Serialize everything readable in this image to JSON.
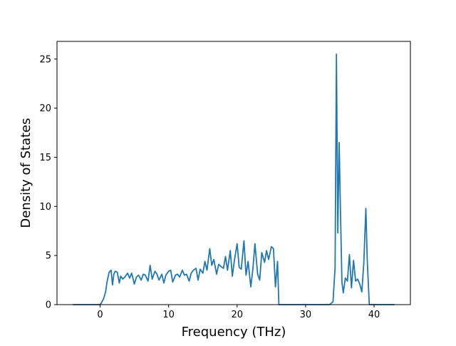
{
  "chart_data": {
    "type": "line",
    "title": "",
    "xlabel": "Frequency (THz)",
    "ylabel": "Density of States",
    "xlim": [
      -6.3,
      45.3
    ],
    "ylim": [
      0,
      26.8
    ],
    "xticks": [
      0,
      10,
      20,
      30,
      40
    ],
    "yticks": [
      0,
      5,
      10,
      15,
      20,
      25
    ],
    "grid": false,
    "legend": null,
    "series": [
      {
        "color": "#1f77b4",
        "x": [
          -4.0,
          -3.0,
          -2.0,
          -1.0,
          -0.5,
          0.0,
          0.2,
          0.5,
          0.8,
          1.0,
          1.3,
          1.6,
          1.8,
          2.0,
          2.2,
          2.5,
          2.8,
          3.0,
          3.3,
          3.6,
          4.0,
          4.3,
          4.6,
          5.0,
          5.3,
          5.6,
          6.0,
          6.3,
          6.6,
          7.0,
          7.3,
          7.6,
          8.0,
          8.3,
          8.6,
          9.0,
          9.3,
          9.6,
          10.0,
          10.3,
          10.6,
          11.0,
          11.3,
          11.6,
          12.0,
          12.3,
          12.6,
          13.0,
          13.3,
          13.6,
          14.0,
          14.3,
          14.6,
          15.0,
          15.3,
          15.6,
          16.0,
          16.3,
          16.6,
          17.0,
          17.3,
          17.6,
          18.0,
          18.3,
          18.6,
          19.0,
          19.3,
          19.6,
          20.0,
          20.3,
          20.6,
          21.0,
          21.3,
          21.6,
          22.0,
          22.3,
          22.6,
          23.0,
          23.3,
          23.6,
          24.0,
          24.3,
          24.6,
          25.0,
          25.3,
          25.6,
          25.9,
          26.1,
          26.4,
          27.0,
          28.0,
          30.0,
          32.0,
          33.5,
          34.0,
          34.3,
          34.5,
          34.7,
          34.9,
          35.1,
          35.3,
          35.5,
          35.8,
          36.1,
          36.4,
          36.7,
          37.0,
          37.3,
          37.6,
          37.9,
          38.2,
          38.5,
          38.8,
          39.0,
          39.3,
          39.6,
          40.0,
          41.0,
          43.0
        ],
        "y": [
          0,
          0,
          0,
          0,
          0,
          0,
          0.2,
          0.6,
          1.3,
          2.3,
          3.3,
          3.5,
          2.0,
          3.1,
          3.4,
          3.3,
          2.2,
          2.9,
          2.6,
          2.8,
          3.2,
          2.7,
          3.2,
          2.1,
          2.8,
          3.0,
          2.5,
          3.1,
          3.0,
          2.4,
          4.0,
          2.6,
          3.4,
          3.1,
          2.5,
          3.1,
          2.2,
          3.0,
          3.4,
          3.5,
          2.3,
          3.0,
          3.1,
          2.8,
          3.5,
          3.0,
          3.1,
          2.4,
          3.2,
          3.5,
          3.7,
          2.5,
          3.6,
          3.2,
          4.4,
          3.5,
          5.7,
          4.0,
          4.6,
          3.1,
          4.1,
          3.9,
          3.7,
          4.9,
          3.5,
          5.5,
          2.9,
          4.5,
          6.2,
          3.8,
          3.6,
          6.5,
          3.0,
          4.4,
          1.8,
          3.6,
          6.2,
          3.1,
          2.5,
          5.3,
          4.3,
          5.5,
          4.6,
          5.9,
          5.7,
          1.8,
          4.4,
          0,
          0,
          0,
          0,
          0,
          0,
          0,
          0.3,
          3.8,
          25.5,
          7.3,
          16.5,
          9.0,
          2.3,
          1.2,
          2.7,
          2.4,
          5.1,
          1.7,
          4.5,
          2.4,
          2.6,
          2.1,
          1.3,
          4.2,
          9.8,
          4.6,
          0,
          0,
          0,
          0,
          0
        ]
      }
    ]
  }
}
